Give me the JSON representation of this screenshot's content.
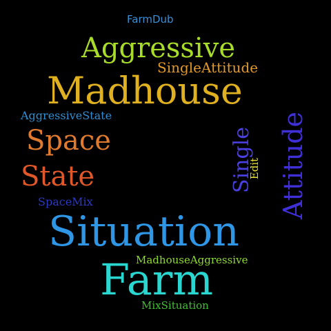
{
  "words": [
    {
      "text": "FarmDub",
      "color": "#3a8fd6"
    },
    {
      "text": "Aggressive",
      "color": "#a9dc2a"
    },
    {
      "text": "SingleAttitude",
      "color": "#e39a2b"
    },
    {
      "text": "Madhouse",
      "color": "#dfb020"
    },
    {
      "text": "AggressiveState",
      "color": "#2f8fd6"
    },
    {
      "text": "Space",
      "color": "#e07a2f"
    },
    {
      "text": "State",
      "color": "#e0582a"
    },
    {
      "text": "SpaceMix",
      "color": "#2b39c9"
    },
    {
      "text": "Single",
      "color": "#4a3fe0"
    },
    {
      "text": "Edit",
      "color": "#e8e23a"
    },
    {
      "text": "Attitude",
      "color": "#3f2fd6"
    },
    {
      "text": "Situation",
      "color": "#2f96e6"
    },
    {
      "text": "MadhouseAggressive",
      "color": "#8fdc2f"
    },
    {
      "text": "Farm",
      "color": "#2ad6d0"
    },
    {
      "text": "MixSituation",
      "color": "#3fc12f"
    }
  ]
}
